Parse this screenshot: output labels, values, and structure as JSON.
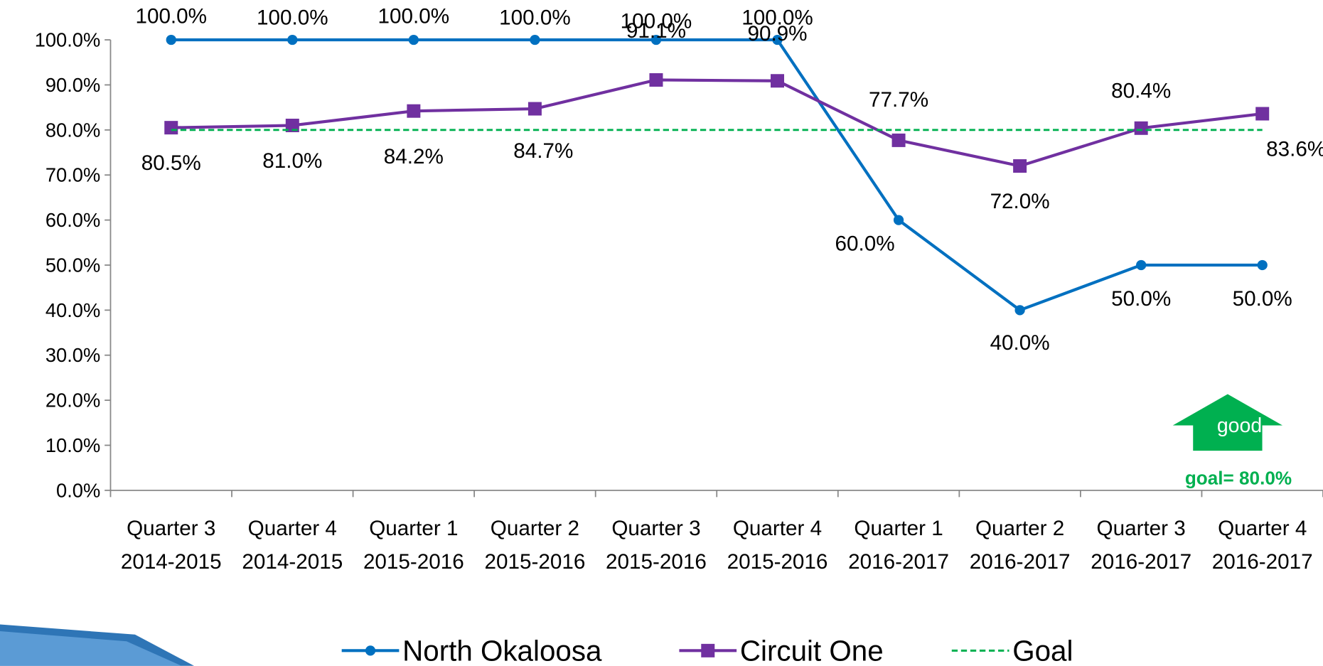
{
  "chart_data": {
    "type": "line",
    "categories": [
      "Quarter 3 2014-2015",
      "Quarter 4 2014-2015",
      "Quarter 1 2015-2016",
      "Quarter 2 2015-2016",
      "Quarter 3 2015-2016",
      "Quarter 4 2015-2016",
      "Quarter 1 2016-2017",
      "Quarter 2 2016-2017",
      "Quarter 3 2016-2017",
      "Quarter 4 2016-2017"
    ],
    "series": [
      {
        "name": "North Okaloosa",
        "color": "#0070c0",
        "marker": "circle",
        "values": [
          100,
          100,
          100,
          100,
          100,
          100,
          60,
          40,
          50,
          50
        ],
        "value_labels": [
          "100.0%",
          "100.0%",
          "100.0%",
          "100.0%",
          "100.0%",
          "100.0%",
          "60.0%",
          "40.0%",
          "50.0%",
          "50.0%"
        ]
      },
      {
        "name": "Circuit One",
        "color": "#7030a0",
        "marker": "square",
        "values": [
          80.5,
          81.0,
          84.2,
          84.7,
          91.1,
          90.9,
          77.7,
          72.0,
          80.4,
          83.6
        ],
        "value_labels": [
          "80.5%",
          "81.0%",
          "84.2%",
          "84.7%",
          "91.1%",
          "90.9%",
          "77.7%",
          "72.0%",
          "80.4%",
          "83.6%"
        ]
      },
      {
        "name": "Goal",
        "color": "#00b050",
        "dashed": true,
        "values": [
          80,
          80,
          80,
          80,
          80,
          80,
          80,
          80,
          80,
          80
        ]
      }
    ],
    "ylim": [
      0,
      100
    ],
    "yticks": [
      {
        "value": 0,
        "label": "0.0%"
      },
      {
        "value": 10,
        "label": "10.0%"
      },
      {
        "value": 20,
        "label": "20.0%"
      },
      {
        "value": 30,
        "label": "30.0%"
      },
      {
        "value": 40,
        "label": "40.0%"
      },
      {
        "value": 50,
        "label": "50.0%"
      },
      {
        "value": 60,
        "label": "60.0%"
      },
      {
        "value": 70,
        "label": "70.0%"
      },
      {
        "value": 80,
        "label": "80.0%"
      },
      {
        "value": 90,
        "label": "90.0%"
      },
      {
        "value": 100,
        "label": "100.0%"
      }
    ],
    "annotations": [
      "good",
      "goal= 80.0%"
    ],
    "legend": "bottom"
  }
}
